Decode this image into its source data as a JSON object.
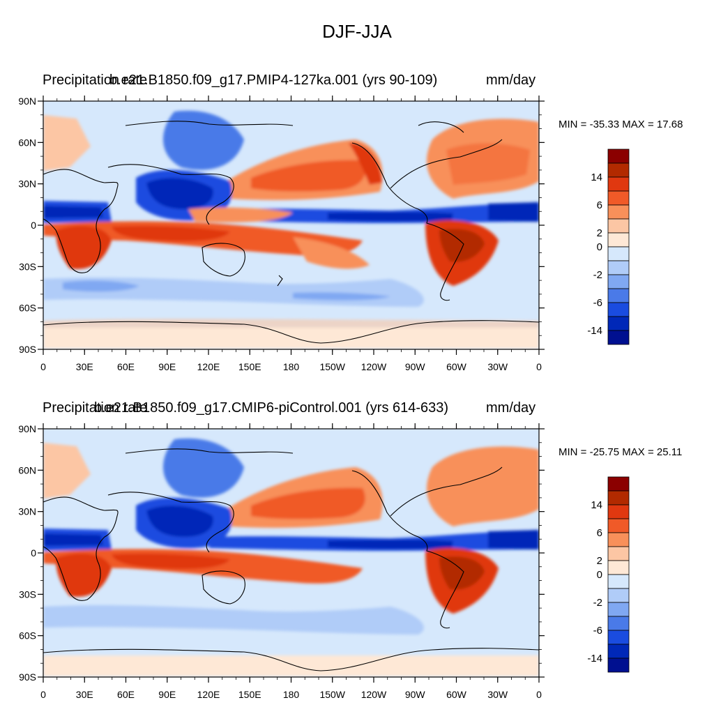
{
  "main_title": "DJF-JJA",
  "variable_label": "Precipitation rate",
  "units": "mm/day",
  "lat_labels": [
    "90N",
    "60N",
    "30N",
    "0",
    "30S",
    "60S",
    "90S"
  ],
  "lon_labels": [
    "0",
    "30E",
    "60E",
    "90E",
    "120E",
    "150E",
    "180",
    "150W",
    "120W",
    "90W",
    "60W",
    "30W",
    "0"
  ],
  "colorbar_labels": [
    "14",
    "6",
    "2",
    "0",
    "-2",
    "-6",
    "-14"
  ],
  "colors": {
    "cb": [
      "#8b0000",
      "#b22a00",
      "#e03810",
      "#f05a28",
      "#f8905a",
      "#fcc6a4",
      "#fee8d6",
      "#d6e8fc",
      "#b0ccf8",
      "#80a8f2",
      "#4a7ae8",
      "#1a4ce0",
      "#0028b8",
      "#001090"
    ],
    "land": "#fee8d6",
    "ocean": "#d6e8fc"
  },
  "panels": [
    {
      "case": "b.e21.B1850.f09_g17.PMIP4-127ka.001 (yrs 90-109)",
      "min_max": "MIN = -35.33 MAX =  17.68"
    },
    {
      "case": "b.e21.B1850.f09_g17.CMIP6-piControl.001 (yrs 614-633)",
      "min_max": "MIN = -25.75 MAX =  25.11"
    }
  ]
}
